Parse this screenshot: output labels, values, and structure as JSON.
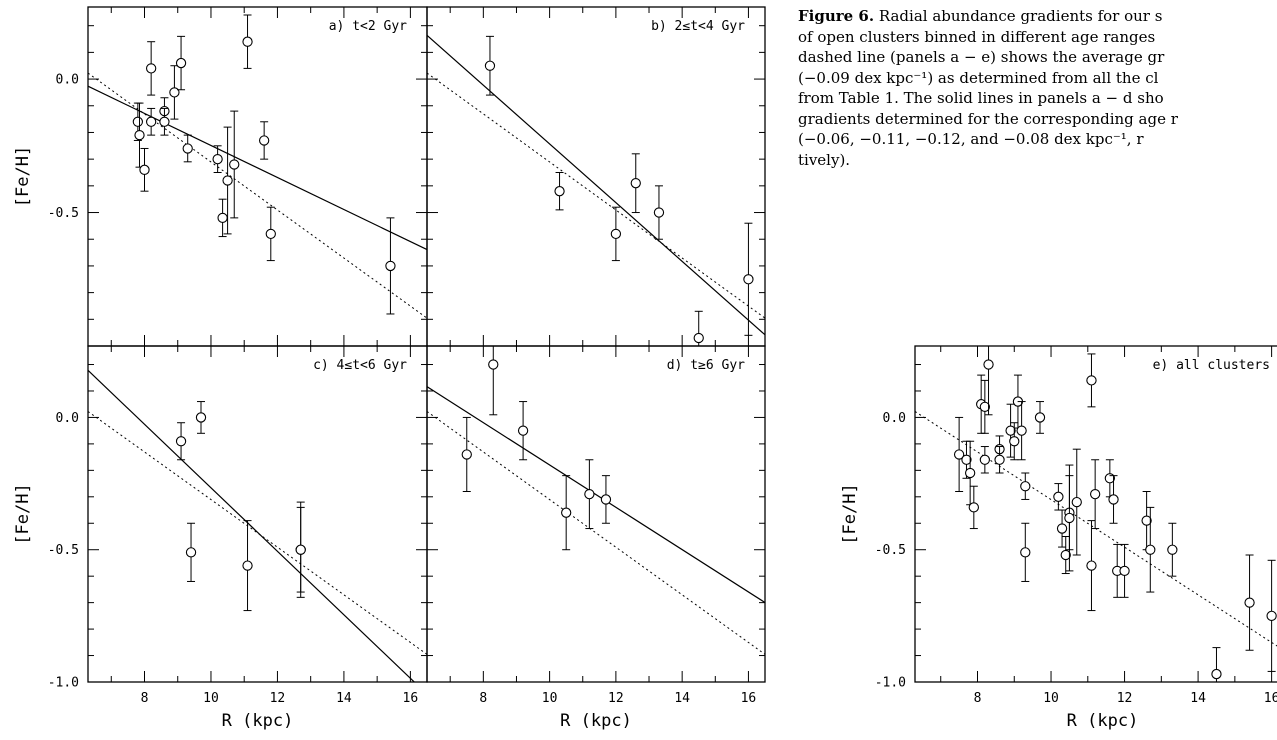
{
  "caption": {
    "title": "Figure 6.",
    "lines": [
      " Radial abundance gradients for our s",
      "of open clusters binned in different age ranges",
      "dashed line (panels a − e) shows the average gr",
      "(−0.09 dex kpc⁻¹) as determined from all the cl",
      "from Table 1. The solid lines in panels a − d sho",
      "gradients determined for the corresponding age r",
      "(−0.06, −0.11, −0.12, and −0.08 dex kpc⁻¹, r",
      "tively)."
    ]
  },
  "chart_data": [
    {
      "type": "scatter",
      "panel_label": "a) t<2 Gyr",
      "xlim": [
        6.3,
        16.5
      ],
      "ylim": [
        -1.0,
        0.27
      ],
      "xticks": [],
      "yticks": [
        "0.0",
        "-0.5"
      ],
      "xlabel": "",
      "ylabel": "[Fe/H]",
      "points": [
        {
          "x": 7.8,
          "y": -0.16,
          "err": 0.07
        },
        {
          "x": 7.85,
          "y": -0.21,
          "err": 0.12
        },
        {
          "x": 8.0,
          "y": -0.34,
          "err": 0.08
        },
        {
          "x": 8.2,
          "y": 0.04,
          "err": 0.1
        },
        {
          "x": 8.2,
          "y": -0.16,
          "err": 0.05
        },
        {
          "x": 8.6,
          "y": -0.12,
          "err": 0.05
        },
        {
          "x": 8.6,
          "y": -0.16,
          "err": 0.05
        },
        {
          "x": 8.9,
          "y": -0.05,
          "err": 0.1
        },
        {
          "x": 9.1,
          "y": 0.06,
          "err": 0.1
        },
        {
          "x": 9.3,
          "y": -0.26,
          "err": 0.05
        },
        {
          "x": 10.2,
          "y": -0.3,
          "err": 0.05
        },
        {
          "x": 10.35,
          "y": -0.52,
          "err": 0.07
        },
        {
          "x": 10.5,
          "y": -0.38,
          "err": 0.2
        },
        {
          "x": 10.7,
          "y": -0.32,
          "err": 0.2
        },
        {
          "x": 11.1,
          "y": 0.14,
          "err": 0.1
        },
        {
          "x": 11.6,
          "y": -0.23,
          "err": 0.07
        },
        {
          "x": 11.8,
          "y": -0.58,
          "err": 0.1
        },
        {
          "x": 15.4,
          "y": -0.7,
          "err": 0.18
        }
      ],
      "solid_line": {
        "slope": -0.06
      },
      "dashed_line": {
        "slope": -0.09
      }
    },
    {
      "type": "scatter",
      "panel_label": "b) 2≤t<4 Gyr",
      "xlim": [
        6.3,
        16.5
      ],
      "ylim": [
        -1.0,
        0.27
      ],
      "xticks": [],
      "yticks": [],
      "xlabel": "",
      "ylabel": "",
      "points": [
        {
          "x": 8.2,
          "y": 0.05,
          "err": 0.11
        },
        {
          "x": 10.3,
          "y": -0.42,
          "err": 0.07
        },
        {
          "x": 12.0,
          "y": -0.58,
          "err": 0.1
        },
        {
          "x": 12.6,
          "y": -0.39,
          "err": 0.11
        },
        {
          "x": 13.3,
          "y": -0.5,
          "err": 0.1
        },
        {
          "x": 14.5,
          "y": -0.97,
          "err": 0.1
        },
        {
          "x": 16.0,
          "y": -0.75,
          "err": 0.21
        }
      ],
      "solid_line": {
        "slope": -0.11
      },
      "dashed_line": {
        "slope": -0.09
      }
    },
    {
      "type": "scatter",
      "panel_label": "c) 4≤t<6 Gyr",
      "xlim": [
        6.3,
        16.5
      ],
      "ylim": [
        -1.0,
        0.27
      ],
      "xticks": [
        "8",
        "10",
        "12",
        "14",
        "16"
      ],
      "yticks": [
        "0.0",
        "-0.5",
        "-1.0"
      ],
      "xlabel": "R (kpc)",
      "ylabel": "[Fe/H]",
      "points": [
        {
          "x": 9.1,
          "y": -0.09,
          "err": 0.07
        },
        {
          "x": 9.7,
          "y": 0.0,
          "err": 0.06
        },
        {
          "x": 9.4,
          "y": -0.51,
          "err": 0.11
        },
        {
          "x": 11.1,
          "y": -0.56,
          "err": 0.17
        },
        {
          "x": 12.7,
          "y": -0.5,
          "err": 0.16
        },
        {
          "x": 12.7,
          "y": -0.5,
          "err": 0.18
        }
      ],
      "solid_line": {
        "slope": -0.12
      },
      "dashed_line": {
        "slope": -0.09
      }
    },
    {
      "type": "scatter",
      "panel_label": "d) t≥6 Gyr",
      "xlim": [
        6.3,
        16.5
      ],
      "ylim": [
        -1.0,
        0.27
      ],
      "xticks": [
        "8",
        "10",
        "12",
        "14",
        "16"
      ],
      "yticks": [],
      "xlabel": "R (kpc)",
      "ylabel": "",
      "points": [
        {
          "x": 7.5,
          "y": -0.14,
          "err": 0.14
        },
        {
          "x": 8.3,
          "y": 0.2,
          "err": 0.19
        },
        {
          "x": 9.2,
          "y": -0.05,
          "err": 0.11
        },
        {
          "x": 10.5,
          "y": -0.36,
          "err": 0.14
        },
        {
          "x": 11.2,
          "y": -0.29,
          "err": 0.13
        },
        {
          "x": 11.7,
          "y": -0.31,
          "err": 0.09
        }
      ],
      "solid_line": {
        "slope": -0.08
      },
      "dashed_line": {
        "slope": -0.09
      }
    },
    {
      "type": "scatter",
      "panel_label": "e) all clusters",
      "xlim": [
        6.3,
        16.5
      ],
      "ylim": [
        -1.0,
        0.27
      ],
      "xticks": [
        "8",
        "10",
        "12",
        "14",
        "16"
      ],
      "yticks": [
        "0.0",
        "-0.5",
        "-1.0"
      ],
      "xlabel": "R (kpc)",
      "ylabel": "[Fe/H]",
      "points": [
        {
          "x": 7.5,
          "y": -0.14,
          "err": 0.14
        },
        {
          "x": 7.7,
          "y": -0.16,
          "err": 0.07
        },
        {
          "x": 7.8,
          "y": -0.21,
          "err": 0.12
        },
        {
          "x": 7.9,
          "y": -0.34,
          "err": 0.08
        },
        {
          "x": 8.1,
          "y": 0.05,
          "err": 0.11
        },
        {
          "x": 8.2,
          "y": 0.04,
          "err": 0.1
        },
        {
          "x": 8.2,
          "y": -0.16,
          "err": 0.05
        },
        {
          "x": 8.3,
          "y": 0.2,
          "err": 0.19
        },
        {
          "x": 8.6,
          "y": -0.12,
          "err": 0.05
        },
        {
          "x": 8.6,
          "y": -0.16,
          "err": 0.05
        },
        {
          "x": 8.9,
          "y": -0.05,
          "err": 0.1
        },
        {
          "x": 9.0,
          "y": -0.09,
          "err": 0.07
        },
        {
          "x": 9.1,
          "y": 0.06,
          "err": 0.1
        },
        {
          "x": 9.2,
          "y": -0.05,
          "err": 0.11
        },
        {
          "x": 9.3,
          "y": -0.26,
          "err": 0.05
        },
        {
          "x": 9.3,
          "y": -0.51,
          "err": 0.11
        },
        {
          "x": 9.7,
          "y": 0.0,
          "err": 0.06
        },
        {
          "x": 10.2,
          "y": -0.3,
          "err": 0.05
        },
        {
          "x": 10.3,
          "y": -0.42,
          "err": 0.07
        },
        {
          "x": 10.4,
          "y": -0.52,
          "err": 0.07
        },
        {
          "x": 10.5,
          "y": -0.36,
          "err": 0.14
        },
        {
          "x": 10.5,
          "y": -0.38,
          "err": 0.2
        },
        {
          "x": 10.7,
          "y": -0.32,
          "err": 0.2
        },
        {
          "x": 11.1,
          "y": 0.14,
          "err": 0.1
        },
        {
          "x": 11.1,
          "y": -0.56,
          "err": 0.17
        },
        {
          "x": 11.2,
          "y": -0.29,
          "err": 0.13
        },
        {
          "x": 11.6,
          "y": -0.23,
          "err": 0.07
        },
        {
          "x": 11.7,
          "y": -0.31,
          "err": 0.09
        },
        {
          "x": 11.8,
          "y": -0.58,
          "err": 0.1
        },
        {
          "x": 12.0,
          "y": -0.58,
          "err": 0.1
        },
        {
          "x": 12.6,
          "y": -0.39,
          "err": 0.11
        },
        {
          "x": 12.7,
          "y": -0.5,
          "err": 0.16
        },
        {
          "x": 13.3,
          "y": -0.5,
          "err": 0.1
        },
        {
          "x": 14.5,
          "y": -0.97,
          "err": 0.1
        },
        {
          "x": 15.4,
          "y": -0.7,
          "err": 0.18
        },
        {
          "x": 16.0,
          "y": -0.75,
          "err": 0.21
        }
      ],
      "dashed_line": {
        "slope": -0.09
      }
    }
  ]
}
